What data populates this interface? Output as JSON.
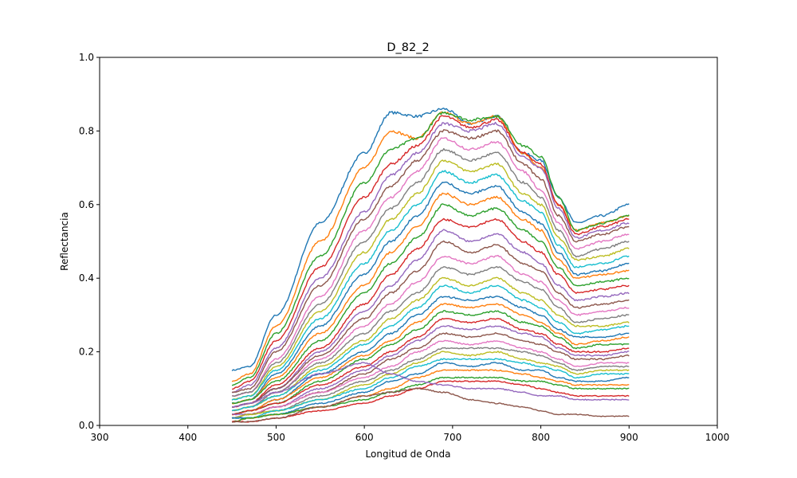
{
  "chart_data": {
    "type": "line",
    "title": "D_82_2",
    "xlabel": "Longitud de Onda",
    "ylabel": "Reflectancia",
    "xlim": [
      300,
      1000
    ],
    "ylim": [
      0.0,
      1.0
    ],
    "xticks": [
      300,
      400,
      500,
      600,
      700,
      800,
      900,
      1000
    ],
    "yticks": [
      0.0,
      0.2,
      0.4,
      0.6,
      0.8,
      1.0
    ],
    "ytick_labels": [
      "0.0",
      "0.2",
      "0.4",
      "0.6",
      "0.8",
      "1.0"
    ],
    "grid": false,
    "legend": false,
    "colors": [
      "#1f77b4",
      "#ff7f0e",
      "#2ca02c",
      "#d62728",
      "#9467bd",
      "#8c564b",
      "#e377c2",
      "#7f7f7f",
      "#bcbd22",
      "#17becf"
    ],
    "x": [
      450,
      470,
      500,
      550,
      600,
      630,
      660,
      690,
      720,
      750,
      780,
      800,
      820,
      840,
      870,
      900
    ],
    "series": [
      {
        "values": [
          0.15,
          0.16,
          0.3,
          0.55,
          0.74,
          0.85,
          0.84,
          0.86,
          0.82,
          0.84,
          0.74,
          0.72,
          0.62,
          0.55,
          0.57,
          0.6
        ]
      },
      {
        "values": [
          0.12,
          0.14,
          0.27,
          0.5,
          0.7,
          0.8,
          0.78,
          0.85,
          0.82,
          0.84,
          0.74,
          0.7,
          0.6,
          0.53,
          0.55,
          0.57
        ]
      },
      {
        "values": [
          0.11,
          0.13,
          0.25,
          0.46,
          0.66,
          0.75,
          0.78,
          0.85,
          0.83,
          0.84,
          0.76,
          0.73,
          0.62,
          0.53,
          0.55,
          0.57
        ]
      },
      {
        "values": [
          0.1,
          0.12,
          0.23,
          0.43,
          0.62,
          0.71,
          0.76,
          0.84,
          0.81,
          0.83,
          0.74,
          0.71,
          0.6,
          0.52,
          0.54,
          0.56
        ]
      },
      {
        "values": [
          0.09,
          0.11,
          0.21,
          0.4,
          0.58,
          0.68,
          0.74,
          0.82,
          0.8,
          0.82,
          0.73,
          0.7,
          0.59,
          0.51,
          0.53,
          0.55
        ]
      },
      {
        "values": [
          0.09,
          0.1,
          0.2,
          0.38,
          0.56,
          0.65,
          0.72,
          0.8,
          0.78,
          0.8,
          0.71,
          0.67,
          0.57,
          0.5,
          0.52,
          0.54
        ]
      },
      {
        "values": [
          0.08,
          0.09,
          0.18,
          0.35,
          0.53,
          0.62,
          0.69,
          0.78,
          0.75,
          0.77,
          0.69,
          0.64,
          0.55,
          0.48,
          0.5,
          0.52
        ]
      },
      {
        "values": [
          0.08,
          0.09,
          0.17,
          0.33,
          0.5,
          0.59,
          0.66,
          0.75,
          0.72,
          0.74,
          0.66,
          0.62,
          0.53,
          0.46,
          0.48,
          0.5
        ]
      },
      {
        "values": [
          0.07,
          0.08,
          0.16,
          0.31,
          0.47,
          0.56,
          0.63,
          0.72,
          0.69,
          0.71,
          0.63,
          0.6,
          0.51,
          0.45,
          0.46,
          0.48
        ]
      },
      {
        "values": [
          0.07,
          0.08,
          0.15,
          0.29,
          0.44,
          0.53,
          0.6,
          0.69,
          0.66,
          0.68,
          0.61,
          0.58,
          0.49,
          0.43,
          0.44,
          0.46
        ]
      },
      {
        "values": [
          0.06,
          0.07,
          0.14,
          0.27,
          0.41,
          0.5,
          0.57,
          0.66,
          0.63,
          0.65,
          0.58,
          0.55,
          0.47,
          0.41,
          0.42,
          0.44
        ]
      },
      {
        "values": [
          0.06,
          0.07,
          0.13,
          0.25,
          0.38,
          0.47,
          0.54,
          0.63,
          0.6,
          0.62,
          0.56,
          0.53,
          0.45,
          0.4,
          0.41,
          0.42
        ]
      },
      {
        "values": [
          0.06,
          0.07,
          0.12,
          0.23,
          0.36,
          0.44,
          0.51,
          0.6,
          0.57,
          0.59,
          0.53,
          0.5,
          0.43,
          0.38,
          0.39,
          0.4
        ]
      },
      {
        "values": [
          0.05,
          0.06,
          0.11,
          0.21,
          0.33,
          0.41,
          0.48,
          0.56,
          0.54,
          0.56,
          0.5,
          0.47,
          0.41,
          0.36,
          0.37,
          0.38
        ]
      },
      {
        "values": [
          0.05,
          0.06,
          0.1,
          0.2,
          0.31,
          0.38,
          0.45,
          0.53,
          0.5,
          0.52,
          0.47,
          0.44,
          0.38,
          0.34,
          0.35,
          0.36
        ]
      },
      {
        "values": [
          0.05,
          0.06,
          0.1,
          0.19,
          0.29,
          0.36,
          0.42,
          0.5,
          0.47,
          0.49,
          0.44,
          0.42,
          0.36,
          0.32,
          0.33,
          0.34
        ]
      },
      {
        "values": [
          0.04,
          0.05,
          0.09,
          0.18,
          0.27,
          0.33,
          0.39,
          0.46,
          0.44,
          0.46,
          0.41,
          0.39,
          0.34,
          0.3,
          0.31,
          0.32
        ]
      },
      {
        "values": [
          0.04,
          0.05,
          0.09,
          0.17,
          0.25,
          0.31,
          0.36,
          0.43,
          0.41,
          0.43,
          0.39,
          0.37,
          0.32,
          0.28,
          0.29,
          0.3
        ]
      },
      {
        "values": [
          0.04,
          0.05,
          0.08,
          0.16,
          0.23,
          0.29,
          0.34,
          0.4,
          0.38,
          0.4,
          0.36,
          0.34,
          0.3,
          0.27,
          0.27,
          0.28
        ]
      },
      {
        "values": [
          0.04,
          0.05,
          0.08,
          0.15,
          0.22,
          0.27,
          0.32,
          0.38,
          0.36,
          0.38,
          0.34,
          0.32,
          0.28,
          0.25,
          0.26,
          0.27
        ]
      },
      {
        "values": [
          0.03,
          0.04,
          0.07,
          0.14,
          0.2,
          0.25,
          0.3,
          0.35,
          0.34,
          0.35,
          0.32,
          0.3,
          0.26,
          0.24,
          0.24,
          0.25
        ]
      },
      {
        "values": [
          0.03,
          0.04,
          0.07,
          0.13,
          0.19,
          0.23,
          0.28,
          0.33,
          0.32,
          0.33,
          0.3,
          0.28,
          0.25,
          0.22,
          0.23,
          0.24
        ]
      },
      {
        "values": [
          0.03,
          0.04,
          0.06,
          0.12,
          0.18,
          0.22,
          0.26,
          0.31,
          0.3,
          0.31,
          0.28,
          0.27,
          0.24,
          0.21,
          0.22,
          0.22
        ]
      },
      {
        "values": [
          0.03,
          0.04,
          0.06,
          0.11,
          0.16,
          0.2,
          0.24,
          0.29,
          0.28,
          0.29,
          0.26,
          0.25,
          0.22,
          0.2,
          0.2,
          0.21
        ]
      },
      {
        "values": [
          0.03,
          0.03,
          0.05,
          0.1,
          0.15,
          0.19,
          0.23,
          0.27,
          0.26,
          0.27,
          0.25,
          0.24,
          0.21,
          0.19,
          0.19,
          0.2
        ]
      },
      {
        "values": [
          0.02,
          0.03,
          0.05,
          0.09,
          0.14,
          0.18,
          0.21,
          0.25,
          0.24,
          0.25,
          0.23,
          0.22,
          0.2,
          0.18,
          0.18,
          0.19
        ]
      },
      {
        "values": [
          0.02,
          0.03,
          0.05,
          0.09,
          0.13,
          0.16,
          0.2,
          0.23,
          0.22,
          0.23,
          0.21,
          0.2,
          0.18,
          0.16,
          0.17,
          0.17
        ]
      },
      {
        "values": [
          0.02,
          0.03,
          0.04,
          0.08,
          0.12,
          0.15,
          0.18,
          0.21,
          0.21,
          0.21,
          0.2,
          0.19,
          0.17,
          0.15,
          0.16,
          0.16
        ]
      },
      {
        "values": [
          0.02,
          0.03,
          0.04,
          0.07,
          0.11,
          0.14,
          0.17,
          0.2,
          0.19,
          0.2,
          0.18,
          0.17,
          0.16,
          0.14,
          0.15,
          0.15
        ]
      },
      {
        "values": [
          0.02,
          0.02,
          0.04,
          0.07,
          0.1,
          0.13,
          0.16,
          0.18,
          0.18,
          0.18,
          0.17,
          0.16,
          0.15,
          0.13,
          0.14,
          0.14
        ]
      },
      {
        "values": [
          0.02,
          0.02,
          0.03,
          0.06,
          0.09,
          0.12,
          0.14,
          0.17,
          0.16,
          0.17,
          0.15,
          0.15,
          0.13,
          0.12,
          0.12,
          0.13
        ]
      },
      {
        "values": [
          0.01,
          0.02,
          0.03,
          0.05,
          0.08,
          0.1,
          0.13,
          0.15,
          0.15,
          0.15,
          0.14,
          0.13,
          0.12,
          0.11,
          0.11,
          0.11
        ]
      },
      {
        "values": [
          0.01,
          0.02,
          0.03,
          0.05,
          0.07,
          0.09,
          0.11,
          0.13,
          0.13,
          0.13,
          0.12,
          0.12,
          0.11,
          0.1,
          0.1,
          0.1
        ]
      },
      {
        "values": [
          0.01,
          0.01,
          0.02,
          0.04,
          0.06,
          0.08,
          0.1,
          0.12,
          0.12,
          0.12,
          0.11,
          0.1,
          0.09,
          0.08,
          0.08,
          0.08
        ]
      },
      {
        "values": [
          0.05,
          0.06,
          0.09,
          0.14,
          0.17,
          0.14,
          0.12,
          0.11,
          0.1,
          0.1,
          0.09,
          0.08,
          0.08,
          0.07,
          0.07,
          0.07
        ]
      },
      {
        "values": [
          0.01,
          0.01,
          0.02,
          0.05,
          0.08,
          0.09,
          0.1,
          0.09,
          0.07,
          0.06,
          0.05,
          0.04,
          0.03,
          0.03,
          0.025,
          0.025
        ]
      }
    ]
  }
}
